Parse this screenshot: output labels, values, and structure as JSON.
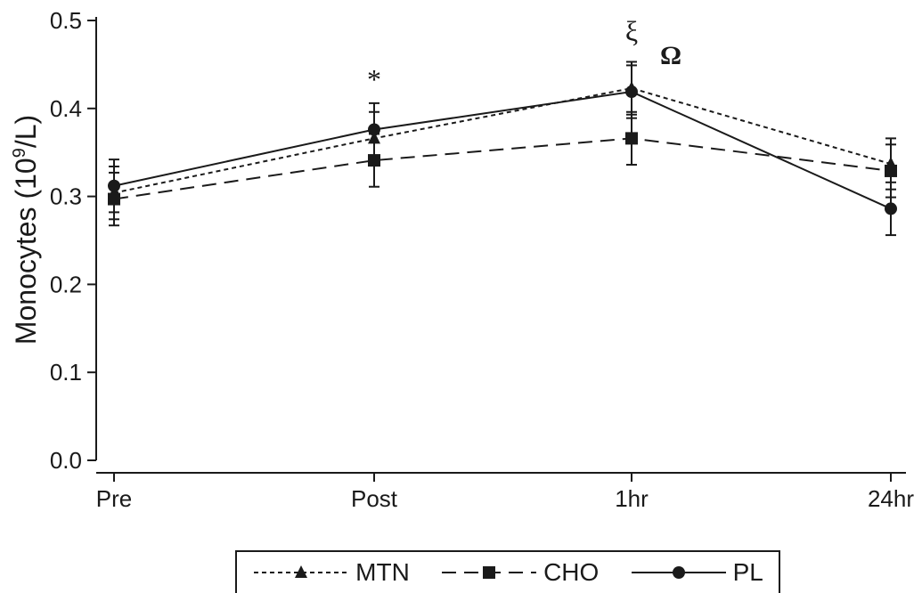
{
  "chart_data": {
    "type": "line",
    "categories": [
      "Pre",
      "Post",
      "1hr",
      "24hr"
    ],
    "ylabel": "Monocytes (10⁹/L)",
    "ylim": [
      0,
      0.5
    ],
    "yticks": [
      "0.0",
      "0.1",
      "0.2",
      "0.3",
      "0.4",
      "0.5"
    ],
    "series": [
      {
        "name": "MTN",
        "marker": "triangle",
        "dash": "dotted",
        "values": [
          0.304,
          0.366,
          0.423,
          0.337
        ],
        "err": [
          0.03,
          0.03,
          0.03,
          0.029
        ]
      },
      {
        "name": "CHO",
        "marker": "square",
        "dash": "dashed",
        "values": [
          0.297,
          0.341,
          0.366,
          0.329
        ],
        "err": [
          0.03,
          0.03,
          0.03,
          0.03
        ]
      },
      {
        "name": "PL",
        "marker": "circle",
        "dash": "solid",
        "values": [
          0.312,
          0.376,
          0.419,
          0.286
        ],
        "err": [
          0.03,
          0.03,
          0.03,
          0.03
        ]
      }
    ],
    "annotations": [
      {
        "text": "*",
        "category": "Post"
      },
      {
        "text": "ξ",
        "category": "1hr"
      },
      {
        "text": "Ω",
        "category": "1hr"
      }
    ],
    "legend_position": "bottom-center",
    "grid": false
  }
}
